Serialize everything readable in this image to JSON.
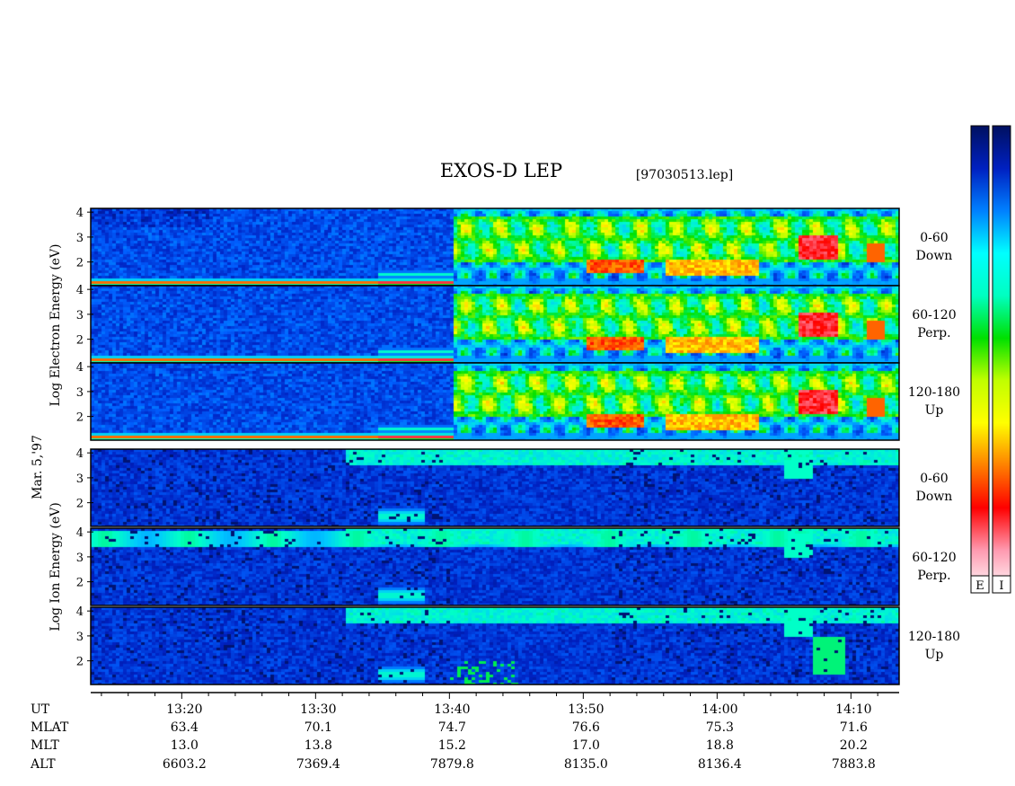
{
  "header": {
    "title": "EXOS-D LEP",
    "file": "[97030513.lep]"
  },
  "date_label": "Mar. 5,'97",
  "groups": [
    {
      "name": "electron",
      "label": "Log Electron Energy (eV)"
    },
    {
      "name": "ion",
      "label": "Log Ion Energy (eV)"
    }
  ],
  "pitch_labels": [
    {
      "range": "0-60",
      "dir": "Down"
    },
    {
      "range": "60-120",
      "dir": "Perp."
    },
    {
      "range": "120-180",
      "dir": "Up"
    },
    {
      "range": "0-60",
      "dir": "Down"
    },
    {
      "range": "60-120",
      "dir": "Perp."
    },
    {
      "range": "120-180",
      "dir": "Up"
    }
  ],
  "colorbar": {
    "labels": [
      "E",
      "I"
    ],
    "colors": [
      "#ffffff",
      "#ff9ab0",
      "#ff0000",
      "#ff8000",
      "#ffff00",
      "#c0ff00",
      "#00e000",
      "#00ffc0",
      "#00ffff",
      "#0080ff",
      "#0020c0",
      "#001060"
    ]
  },
  "footer": {
    "row_labels": [
      "UT",
      "MLAT",
      "MLT",
      "ALT"
    ],
    "columns": [
      {
        "ut": "13:20",
        "mlat": "63.4",
        "mlt": "13.0",
        "alt": "6603.2"
      },
      {
        "ut": "13:30",
        "mlat": "70.1",
        "mlt": "13.8",
        "alt": "7369.4"
      },
      {
        "ut": "13:40",
        "mlat": "74.7",
        "mlt": "15.2",
        "alt": "7879.8"
      },
      {
        "ut": "13:50",
        "mlat": "76.6",
        "mlt": "17.0",
        "alt": "8135.0"
      },
      {
        "ut": "14:00",
        "mlat": "75.3",
        "mlt": "18.8",
        "alt": "8136.4"
      },
      {
        "ut": "14:10",
        "mlat": "71.6",
        "mlt": "20.2",
        "alt": "7883.8"
      }
    ]
  },
  "chart_data": {
    "type": "heatmap",
    "title": "EXOS-D LEP",
    "x_axis": {
      "label": "UT",
      "ticks": [
        "13:20",
        "13:30",
        "13:40",
        "13:50",
        "14:00",
        "14:10"
      ],
      "range_minutes": [
        13.2,
        73.6
      ],
      "tick_minutes": [
        20,
        30,
        40,
        50,
        60,
        70
      ]
    },
    "y_axis": {
      "label": "Log Energy (eV)",
      "ticks": [
        2,
        3,
        4
      ],
      "range": [
        1.05,
        4.15
      ]
    },
    "panels": [
      {
        "species": "electron",
        "pitch": "0-60",
        "dir": "Down"
      },
      {
        "species": "electron",
        "pitch": "60-120",
        "dir": "Perp."
      },
      {
        "species": "electron",
        "pitch": "120-180",
        "dir": "Up"
      },
      {
        "species": "ion",
        "pitch": "0-60",
        "dir": "Down"
      },
      {
        "species": "ion",
        "pitch": "60-120",
        "dir": "Perp."
      },
      {
        "species": "ion",
        "pitch": "120-180",
        "dir": "Up"
      }
    ]
  }
}
